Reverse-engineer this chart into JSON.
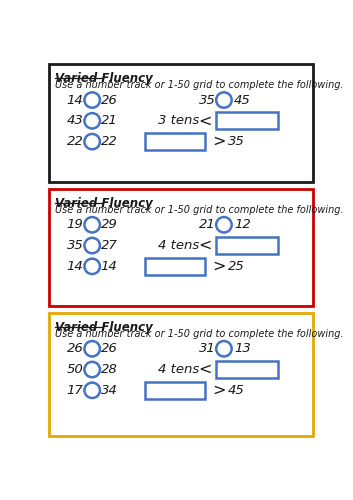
{
  "sections": [
    {
      "border_color": "#1a1a1a",
      "title": "Varied Fluency",
      "subtitle": "Use a number track or 1-50 grid to complete the following.",
      "left_pairs": [
        [
          "14",
          "26"
        ],
        [
          "43",
          "21"
        ],
        [
          "22",
          "22"
        ]
      ],
      "right_top": [
        "35",
        "45"
      ],
      "tens_label": "3 tens",
      "gt_number": "35"
    },
    {
      "border_color": "#cc0000",
      "title": "Varied Fluency",
      "subtitle": "Use a number track or 1-50 grid to complete the following.",
      "left_pairs": [
        [
          "19",
          "29"
        ],
        [
          "35",
          "27"
        ],
        [
          "14",
          "14"
        ]
      ],
      "right_top": [
        "21",
        "12"
      ],
      "tens_label": "4 tens",
      "gt_number": "25"
    },
    {
      "border_color": "#e6a800",
      "title": "Varied Fluency",
      "subtitle": "Use a number track or 1-50 grid to complete the following.",
      "left_pairs": [
        [
          "26",
          "26"
        ],
        [
          "50",
          "28"
        ],
        [
          "17",
          "34"
        ]
      ],
      "right_top": [
        "31",
        "13"
      ],
      "tens_label": "4 tens",
      "gt_number": "45"
    }
  ],
  "circle_color": "#4472c4",
  "box_color": "#4472c4",
  "text_color": "#1a1a1a",
  "bg_color": "#ffffff",
  "font_size_title": 8.5,
  "font_size_sub": 7.0,
  "font_size_num": 9.5
}
